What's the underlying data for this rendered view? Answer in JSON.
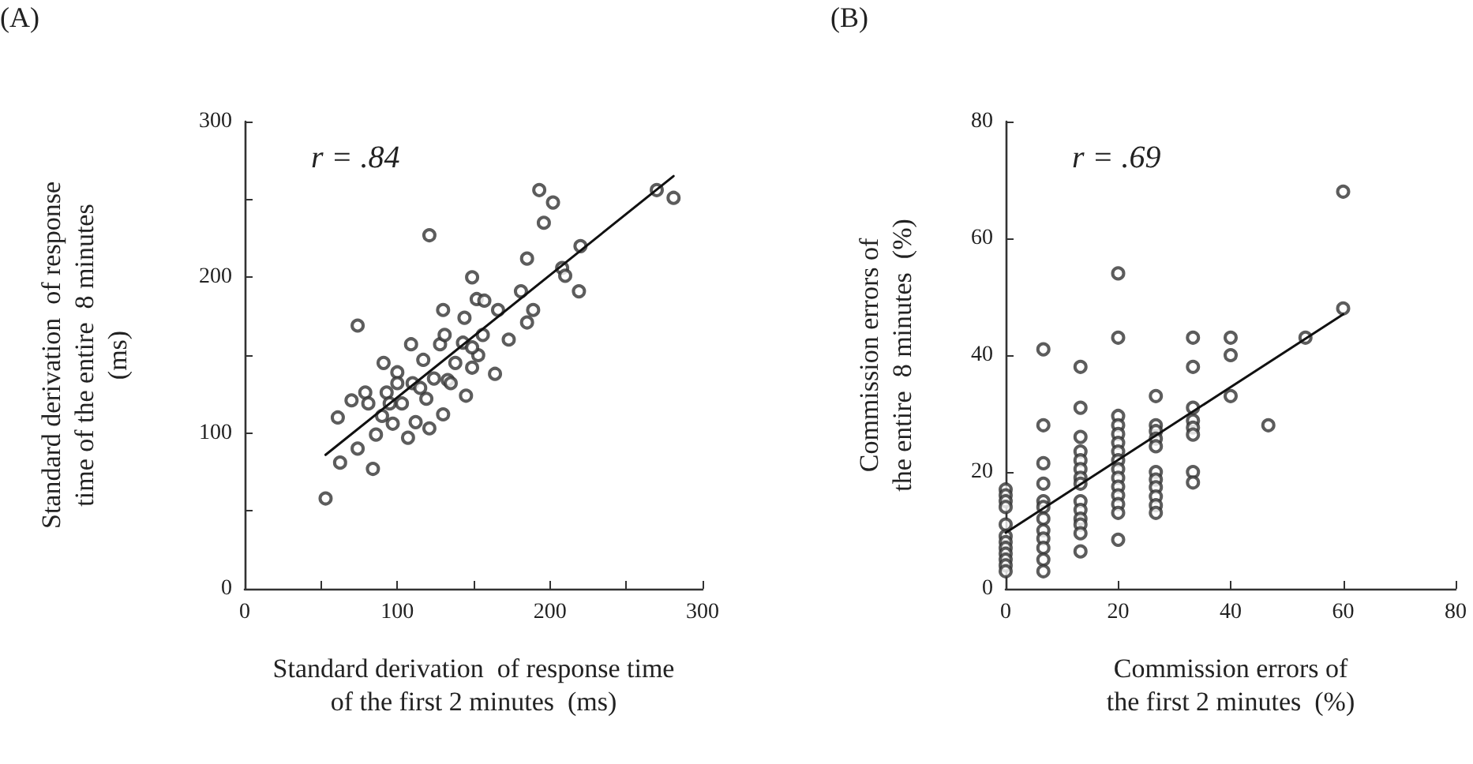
{
  "chart_data": [
    {
      "type": "scatter",
      "xlabel": "Standard derivation  of response time\nof the first 2 minutes  (ms)",
      "ylabel": "Standard derivation  of response\ntime of the entire  8 minutes\n(ms)",
      "annotations": [
        "(A)",
        "r = .84"
      ],
      "xlim": [
        0,
        300
      ],
      "ylim": [
        0,
        300
      ],
      "xticks": [
        0,
        {
          "value": 50,
          "label": null
        },
        100,
        {
          "value": 150,
          "label": null
        },
        200,
        {
          "value": 250,
          "label": null
        },
        300
      ],
      "yticks": [
        0,
        {
          "value": 50,
          "label": null
        },
        100,
        {
          "value": 150,
          "label": null
        },
        200,
        {
          "value": 250,
          "label": null
        },
        300
      ],
      "grid": false,
      "marker": "circle",
      "series": [
        {
          "color": "#333333",
          "x": [
            53,
            62.5,
            61,
            74,
            74,
            84,
            70,
            79,
            91,
            93,
            86,
            90,
            100,
            100,
            103,
            107,
            109,
            112,
            117,
            119,
            121,
            121,
            130,
            128,
            131,
            130,
            133,
            144,
            143,
            145,
            149,
            149,
            152,
            153,
            157,
            156,
            164,
            166,
            173,
            181,
            185,
            185,
            189,
            193,
            196,
            202,
            208,
            210,
            219,
            220,
            270,
            281,
            81,
            95,
            97,
            110,
            115,
            124,
            135,
            138,
            149
          ],
          "values": [
            58,
            81,
            110,
            169,
            90,
            77,
            121,
            126,
            145,
            126,
            99,
            111,
            139,
            132,
            119,
            97,
            157,
            107,
            147,
            122,
            103,
            227,
            179,
            157,
            163,
            112,
            134,
            174,
            158,
            124,
            200,
            142,
            186,
            150,
            185,
            163,
            138,
            179,
            160,
            191,
            212,
            171,
            179,
            256,
            235,
            248,
            206,
            201,
            191,
            220,
            256,
            251,
            119,
            119,
            106,
            132,
            129,
            135,
            132,
            145,
            155
          ]
        },
        {
          "type": "line",
          "color": "#111111",
          "marker": "none",
          "line_style": "solid",
          "x": [
            53,
            281
          ],
          "values": [
            86,
            265
          ]
        }
      ]
    },
    {
      "type": "scatter",
      "xlabel": "Commission errors of\nthe first 2 minutes  (%)",
      "ylabel": "Commission errors of\nthe entire  8 minutes  (%)",
      "annotations": [
        "(B)",
        "r = .69"
      ],
      "xlim": [
        0,
        80
      ],
      "ylim": [
        0,
        80
      ],
      "xticks": [
        0,
        20,
        40,
        60,
        80
      ],
      "yticks": [
        0,
        20,
        40,
        60,
        80
      ],
      "grid": false,
      "marker": "circle",
      "series": [
        {
          "color": "#333333",
          "x": [
            0,
            0,
            0,
            0,
            0,
            0,
            0,
            0,
            0,
            0,
            0,
            0,
            6.7,
            6.7,
            6.7,
            6.7,
            6.7,
            6.7,
            6.7,
            6.7,
            6.7,
            6.7,
            6.7,
            6.7,
            13.3,
            13.3,
            13.3,
            13.3,
            13.3,
            13.3,
            13.3,
            13.3,
            13.3,
            13.3,
            13.3,
            13.3,
            13.3,
            13.3,
            20,
            20,
            20,
            20,
            20,
            20,
            20,
            20,
            20,
            20,
            20,
            20,
            20,
            20,
            20,
            26.7,
            26.7,
            26.7,
            26.7,
            26.7,
            26.7,
            26.7,
            26.7,
            26.7,
            26.7,
            26.7,
            33.3,
            33.3,
            33.3,
            33.3,
            33.3,
            33.3,
            33.3,
            33.3,
            40,
            40,
            40,
            46.7,
            53.3,
            60,
            60
          ],
          "values": [
            17,
            16,
            15,
            14,
            11,
            9,
            8,
            7,
            6,
            5,
            4,
            3,
            41,
            28,
            21.5,
            18,
            15,
            14,
            12,
            10,
            8.6,
            7,
            5,
            3,
            38,
            31,
            26,
            23.5,
            22,
            20.5,
            19,
            18,
            15,
            13.5,
            12,
            11,
            9.5,
            6.4,
            54,
            43,
            29.6,
            28,
            26.5,
            25,
            23.5,
            22,
            20.5,
            19,
            17.5,
            16,
            14.5,
            13,
            8.4,
            33,
            28,
            27,
            25.7,
            24.4,
            20,
            18.7,
            17.4,
            15.8,
            14.3,
            13,
            43,
            38,
            31,
            28.8,
            27.6,
            26.4,
            20,
            18.2,
            43,
            40,
            33,
            28,
            43,
            68,
            48
          ]
        },
        {
          "type": "line",
          "color": "#111111",
          "marker": "none",
          "line_style": "solid",
          "x": [
            0,
            60
          ],
          "values": [
            9.6,
            47
          ]
        }
      ]
    }
  ]
}
